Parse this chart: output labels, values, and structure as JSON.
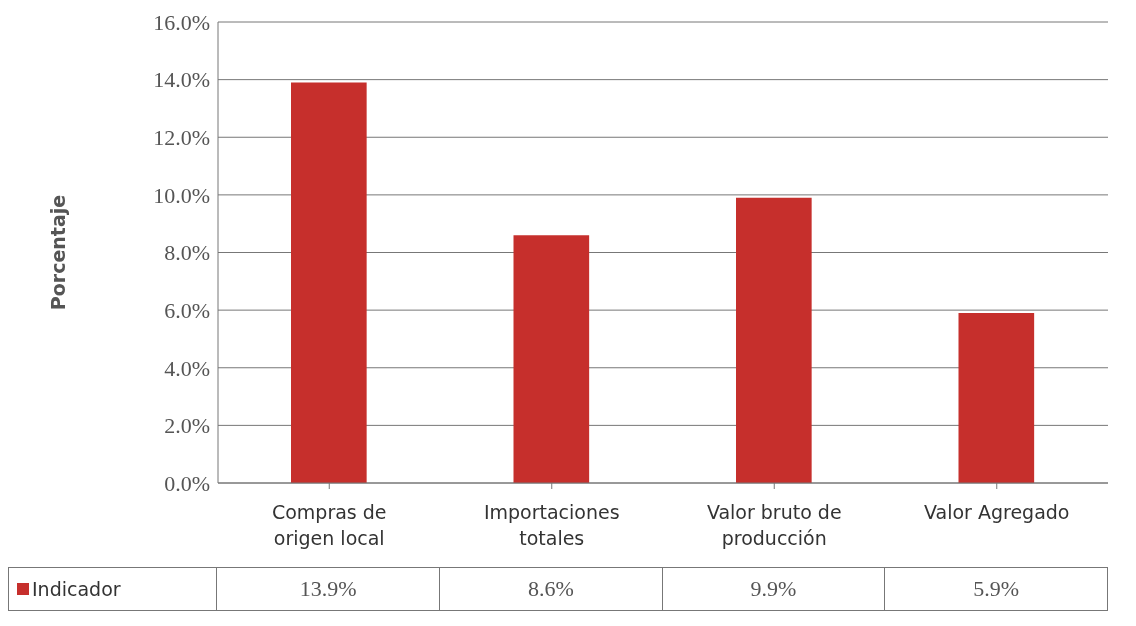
{
  "chart_data": {
    "type": "bar",
    "ylabel": "Porcentaje",
    "categories": [
      "Compras de origen local",
      "Importaciones totales",
      "Valor bruto de producción",
      "Valor Agregado"
    ],
    "series": [
      {
        "name": "Indicador",
        "color": "#c62f2c",
        "values": [
          13.9,
          8.6,
          9.9,
          5.9
        ],
        "value_labels": [
          "13.9%",
          "8.6%",
          "9.9%",
          "5.9%"
        ]
      }
    ],
    "ylim": [
      0,
      16
    ],
    "yticks": [
      {
        "value": 0,
        "label": "0.0%"
      },
      {
        "value": 2,
        "label": "2.0%"
      },
      {
        "value": 4,
        "label": "4.0%"
      },
      {
        "value": 6,
        "label": "6.0%"
      },
      {
        "value": 8,
        "label": "8.0%"
      },
      {
        "value": 10,
        "label": "10.0%"
      },
      {
        "value": 12,
        "label": "12.0%"
      },
      {
        "value": 14,
        "label": "14.0%"
      },
      {
        "value": 16,
        "label": "16.0%"
      }
    ],
    "grid": "y",
    "legend": "bottom left"
  }
}
